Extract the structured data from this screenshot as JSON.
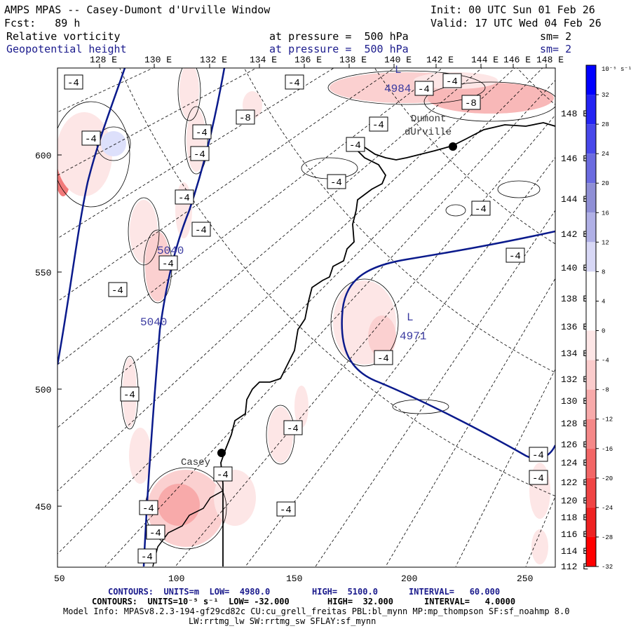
{
  "header": {
    "title": "AMPS MPAS -- Casey-Dumont d'Urville Window",
    "init": "Init: 00 UTC Sun 01 Feb 26",
    "fcst": "Fcst:   89 h",
    "valid": "Valid: 17 UTC Wed 04 Feb 26",
    "field1": "Relative vorticity",
    "field1_level": "at pressure =  500 hPa",
    "field1_sm": "sm= 2",
    "field2": "Geopotential height",
    "field2_level": "at pressure =  500 hPa",
    "field2_sm": "sm= 2"
  },
  "top_lon_labels": [
    "128 E",
    "130 E",
    "132 E",
    "134 E",
    "136 E",
    "138 E",
    "140 E",
    "142 E",
    "144 E",
    "146 E",
    "148 E"
  ],
  "right_lon_labels": [
    "148 E",
    "146 E",
    "144 E",
    "142 E",
    "140 E",
    "138 E",
    "136 E",
    "134 E",
    "132 E",
    "130 E",
    "128 E",
    "126 E",
    "124 E",
    "122 E",
    "120 E",
    "118 E",
    "116 E",
    "114 E",
    "112 E"
  ],
  "left_axis": [
    "600",
    "550",
    "500",
    "450"
  ],
  "bottom_axis": [
    "50",
    "100",
    "150",
    "200",
    "250"
  ],
  "colorbar": {
    "unit_label": "10⁻⁵ s⁻¹",
    "ticks": [
      "32",
      "28",
      "24",
      "20",
      "16",
      "12",
      "8",
      "4",
      "0",
      "-4",
      "-8",
      "-12",
      "-16",
      "-20",
      "-24",
      "-28",
      "-32"
    ],
    "colors": [
      "#0000ff",
      "#2424f3",
      "#4848ea",
      "#6b6be0",
      "#8f8fd6",
      "#b0b0e6",
      "#d8d8f6",
      "#ffffff",
      "#ffffff",
      "#fde6e6",
      "#fbcccc",
      "#f8aaaa",
      "#f58888",
      "#f36666",
      "#f04444",
      "#ee2222",
      "#ff0000"
    ]
  },
  "places": [
    {
      "name": "Dumont\ndUrville"
    },
    {
      "name": "Casey"
    }
  ],
  "height_labels": [
    "4984",
    "5040",
    "5040",
    "4971"
  ],
  "vort_labels": [
    "-4",
    "-4",
    "-4",
    "-4",
    "-4",
    "-4",
    "-4",
    "-4",
    "-4",
    "-4",
    "-8",
    "-4",
    "-4",
    "-4",
    "-4",
    "-4",
    "-4",
    "-4",
    "-4",
    "-4",
    "-4",
    "-4",
    "-4",
    "-4",
    "-4",
    "-4",
    "-8",
    "-4"
  ],
  "footer": {
    "line1_a": "CONTOURS:  UNITS=m  LOW=  4980.0",
    "line1_b": "HIGH=  5100.0",
    "line1_c": "INTERVAL=   60.000",
    "line2_a": "CONTOURS:  UNITS=10⁻⁵ s⁻¹  LOW= -32.000",
    "line2_b": "HIGH=  32.000",
    "line2_c": "INTERVAL=   4.0000",
    "line3": "Model Info: MPASv8.2.3-194-gf29cd82c CU:cu_grell_freitas PBL:bl_mynn MP:mp_thompson SF:sf_noahmp 8.0",
    "line4": "LW:rrtmg_lw SW:rrtmg_sw SFLAY:sf_mynn"
  }
}
